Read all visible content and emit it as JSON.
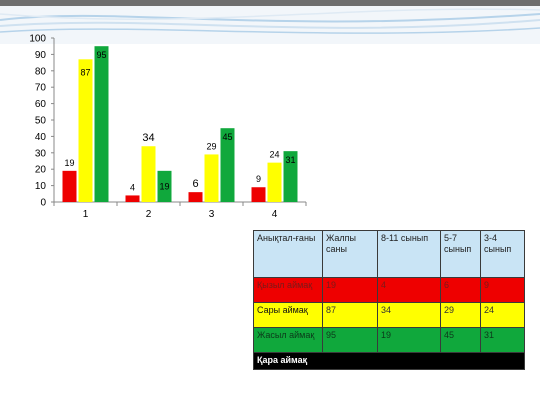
{
  "colors": {
    "red": "#ee0000",
    "yellow": "#ffff00",
    "green": "#10a83c",
    "black": "#000000",
    "header_blue": "#c9e4f5"
  },
  "chart_data": {
    "type": "bar",
    "categories": [
      "1",
      "2",
      "3",
      "4"
    ],
    "series": [
      {
        "color": "#ee0000",
        "values": [
          19,
          4,
          6,
          9
        ]
      },
      {
        "color": "#ffff00",
        "values": [
          87,
          34,
          29,
          24
        ]
      },
      {
        "color": "#10a83c",
        "values": [
          95,
          19,
          45,
          31
        ]
      }
    ],
    "ylim": [
      0,
      100
    ],
    "yticks": [
      0,
      10,
      20,
      30,
      40,
      50,
      60,
      70,
      80,
      90,
      100
    ],
    "grid": false,
    "legend": "none"
  },
  "table": {
    "header": [
      "Анықтал-ғаны",
      "Жалпы саны",
      "8-11 сынып",
      "5-7 сынып",
      "3-4 сынып"
    ],
    "rows": [
      {
        "label": "Қызыл аймақ",
        "cells": [
          "19",
          "4",
          "6",
          "9"
        ]
      },
      {
        "label": "Сары аймақ",
        "cells": [
          "87",
          "34",
          "29",
          "24"
        ]
      },
      {
        "label": "Жасыл аймақ",
        "cells": [
          "95",
          "19",
          "45",
          "31"
        ]
      },
      {
        "label": "Қара аймақ",
        "cells": [
          "",
          "",
          "",
          ""
        ]
      }
    ]
  }
}
